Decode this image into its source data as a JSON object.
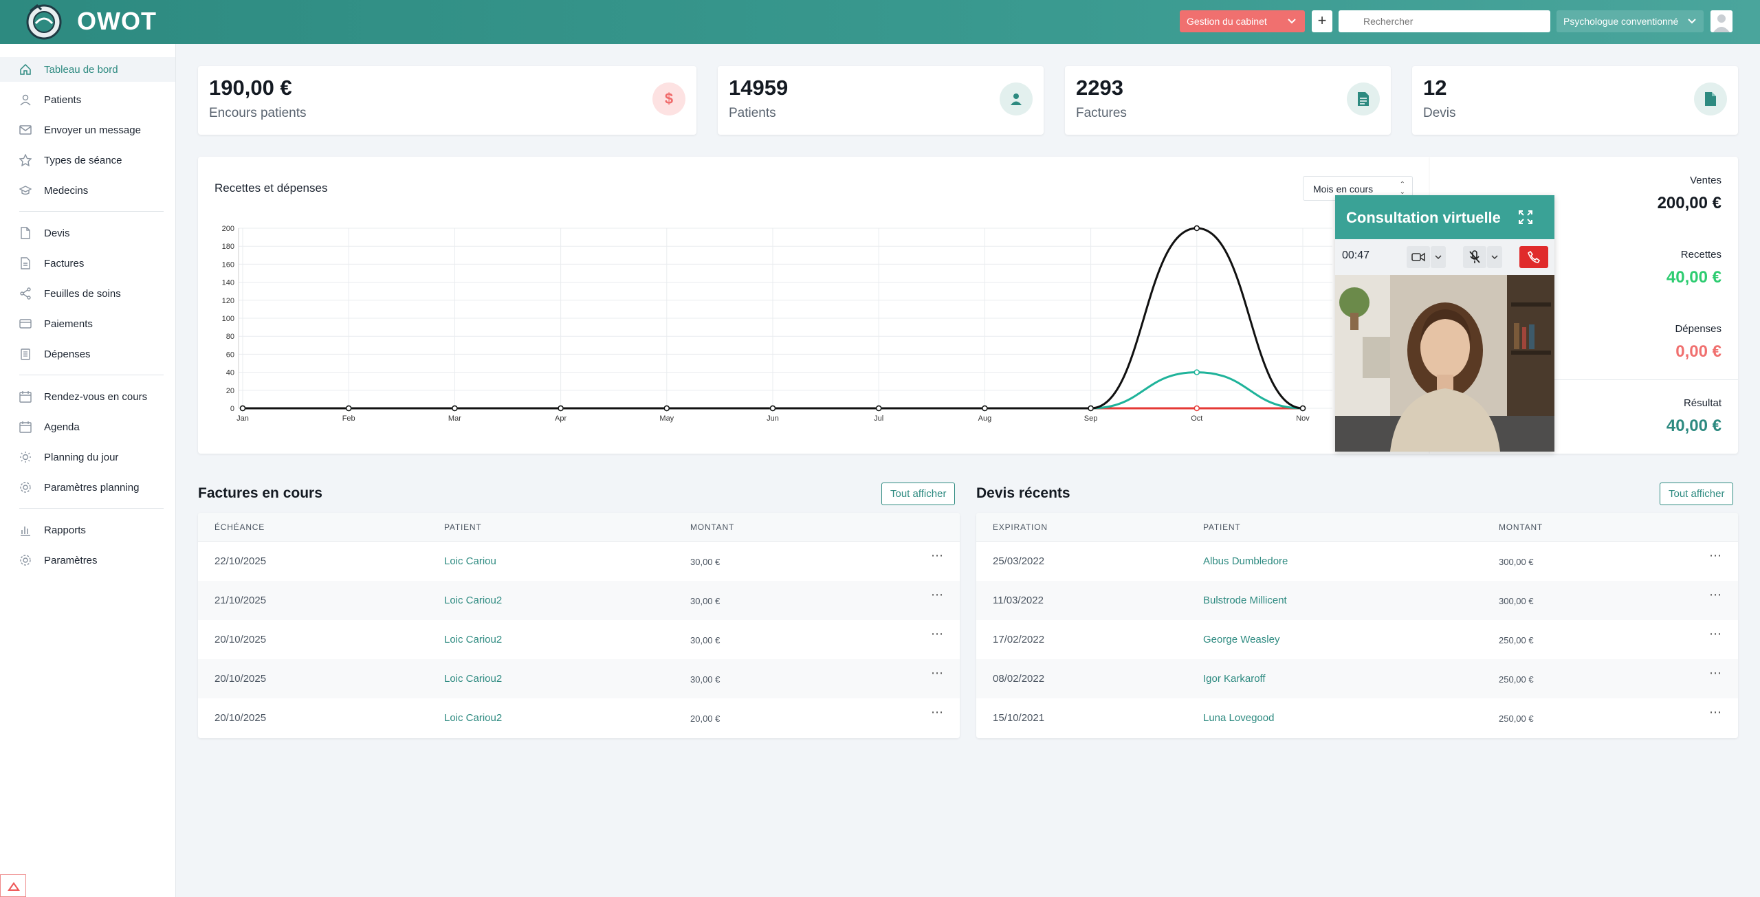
{
  "header": {
    "brand": "OWOT",
    "cabinet_select": "Gestion du cabinet",
    "plus": "+",
    "search_placeholder": "Rechercher",
    "role_select": "Psychologue conventionné"
  },
  "sidebar": {
    "items": [
      {
        "label": "Tableau de bord",
        "icon": "home-icon"
      },
      {
        "label": "Patients",
        "icon": "user-icon"
      },
      {
        "label": "Envoyer un message",
        "icon": "mail-icon"
      },
      {
        "label": "Types de séance",
        "icon": "star-icon"
      },
      {
        "label": "Medecins",
        "icon": "graduation-icon"
      },
      {
        "label": "Devis",
        "icon": "file-icon"
      },
      {
        "label": "Factures",
        "icon": "file-text-icon"
      },
      {
        "label": "Feuilles de soins",
        "icon": "share-icon"
      },
      {
        "label": "Paiements",
        "icon": "credit-card-icon"
      },
      {
        "label": "Dépenses",
        "icon": "clipboard-icon"
      },
      {
        "label": "Rendez-vous en cours",
        "icon": "calendar-icon"
      },
      {
        "label": "Agenda",
        "icon": "calendar-icon"
      },
      {
        "label": "Planning du jour",
        "icon": "sun-icon"
      },
      {
        "label": "Paramètres planning",
        "icon": "gear-icon"
      },
      {
        "label": "Rapports",
        "icon": "bar-chart-icon"
      },
      {
        "label": "Paramètres",
        "icon": "gear-icon"
      }
    ]
  },
  "stats": [
    {
      "value": "190,00 €",
      "label": "Encours patients",
      "icon": "dollar-icon"
    },
    {
      "value": "14959",
      "label": "Patients",
      "icon": "user-icon"
    },
    {
      "value": "2293",
      "label": "Factures",
      "icon": "file-text-icon"
    },
    {
      "value": "12",
      "label": "Devis",
      "icon": "file-icon"
    }
  ],
  "chart_section": {
    "title": "Recettes et dépenses",
    "period": "Mois en cours"
  },
  "summary": {
    "ventes_label": "Ventes",
    "ventes_value": "200,00 €",
    "recettes_label": "Recettes",
    "recettes_value": "40,00 €",
    "depenses_label": "Dépenses",
    "depenses_value": "0,00 €",
    "resultat_label": "Résultat",
    "resultat_value": "40,00 €"
  },
  "chart_data": {
    "type": "line",
    "categories": [
      "Jan",
      "Feb",
      "Mar",
      "Apr",
      "May",
      "Jun",
      "Jul",
      "Aug",
      "Sep",
      "Oct",
      "Nov"
    ],
    "y_ticks": [
      0,
      20,
      40,
      60,
      80,
      100,
      120,
      140,
      160,
      180,
      200
    ],
    "ylim": [
      0,
      200
    ],
    "grid": true,
    "series": [
      {
        "color": "#111111",
        "values": [
          0,
          0,
          0,
          0,
          0,
          0,
          0,
          0,
          0,
          200,
          0
        ]
      },
      {
        "color": "#1fb39a",
        "values": [
          0,
          0,
          0,
          0,
          0,
          0,
          0,
          0,
          0,
          40,
          0
        ]
      },
      {
        "color": "#e53935",
        "values": [
          0,
          0,
          0,
          0,
          0,
          0,
          0,
          0,
          0,
          0,
          0
        ]
      }
    ]
  },
  "video_call": {
    "title": "Consultation virtuelle",
    "timer": "00:47"
  },
  "factures": {
    "title": "Factures en cours",
    "button": "Tout afficher",
    "columns": [
      "ÉCHÉANCE",
      "PATIENT",
      "MONTANT"
    ],
    "rows": [
      {
        "date": "22/10/2025",
        "patient": "Loic Cariou",
        "amount": "30,00 €"
      },
      {
        "date": "21/10/2025",
        "patient": "Loic Cariou2",
        "amount": "30,00 €"
      },
      {
        "date": "20/10/2025",
        "patient": "Loic Cariou2",
        "amount": "30,00 €"
      },
      {
        "date": "20/10/2025",
        "patient": "Loic Cariou2",
        "amount": "30,00 €"
      },
      {
        "date": "20/10/2025",
        "patient": "Loic Cariou2",
        "amount": "20,00 €"
      }
    ]
  },
  "devis": {
    "title": "Devis récents",
    "button": "Tout afficher",
    "columns": [
      "EXPIRATION",
      "PATIENT",
      "MONTANT"
    ],
    "rows": [
      {
        "date": "25/03/2022",
        "patient": "Albus Dumbledore",
        "amount": "300,00 €"
      },
      {
        "date": "11/03/2022",
        "patient": "Bulstrode Millicent",
        "amount": "300,00 €"
      },
      {
        "date": "17/02/2022",
        "patient": "George Weasley",
        "amount": "250,00 €"
      },
      {
        "date": "08/02/2022",
        "patient": "Igor Karkaroff",
        "amount": "250,00 €"
      },
      {
        "date": "15/10/2021",
        "patient": "Luna Lovegood",
        "amount": "250,00 €"
      }
    ]
  },
  "colors": {
    "accent": "#2d8a80",
    "danger": "#f0706f",
    "success": "#2ecc71"
  }
}
